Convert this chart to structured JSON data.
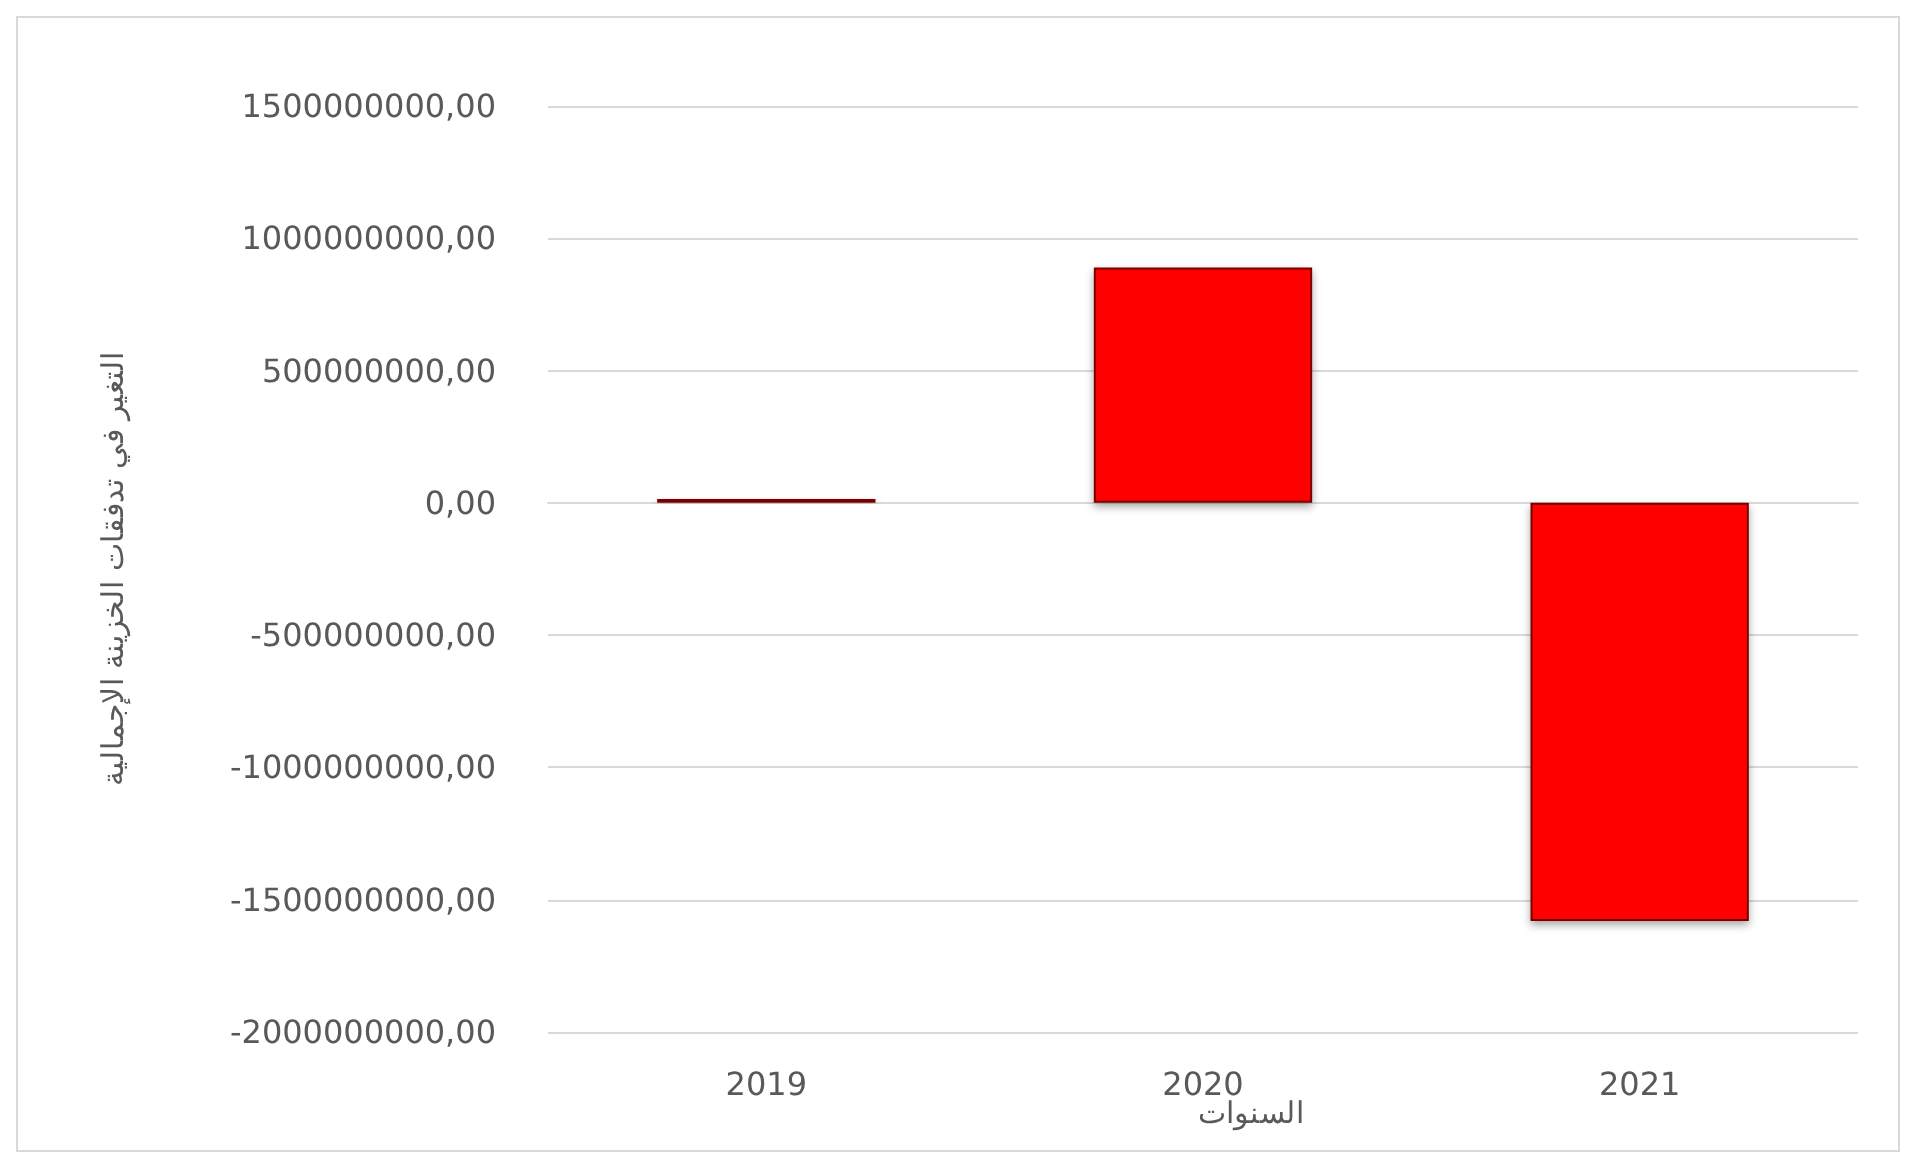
{
  "chart_data": {
    "type": "bar",
    "xlabel": "السنوات",
    "ylabel": "التغير في تدفقات الخزينة الإجمالية",
    "categories": [
      "2019",
      "2020",
      "2021"
    ],
    "series": [
      {
        "color": "#ff0000",
        "values": [
          15000000,
          890000000,
          -1580000000
        ]
      }
    ],
    "ylim": [
      -2000000000,
      1500000000
    ],
    "yticks": [
      {
        "value": -2000000000,
        "label": "-2000000000,00"
      },
      {
        "value": -1500000000,
        "label": "-1500000000,00"
      },
      {
        "value": -1000000000,
        "label": "-1000000000,00"
      },
      {
        "value": -500000000,
        "label": "-500000000,00"
      },
      {
        "value": 0,
        "label": "0,00"
      },
      {
        "value": 500000000,
        "label": "500000000,00"
      },
      {
        "value": 1000000000,
        "label": "1000000000,00"
      },
      {
        "value": 1500000000,
        "label": "1500000000,00"
      }
    ],
    "grid": "y"
  }
}
